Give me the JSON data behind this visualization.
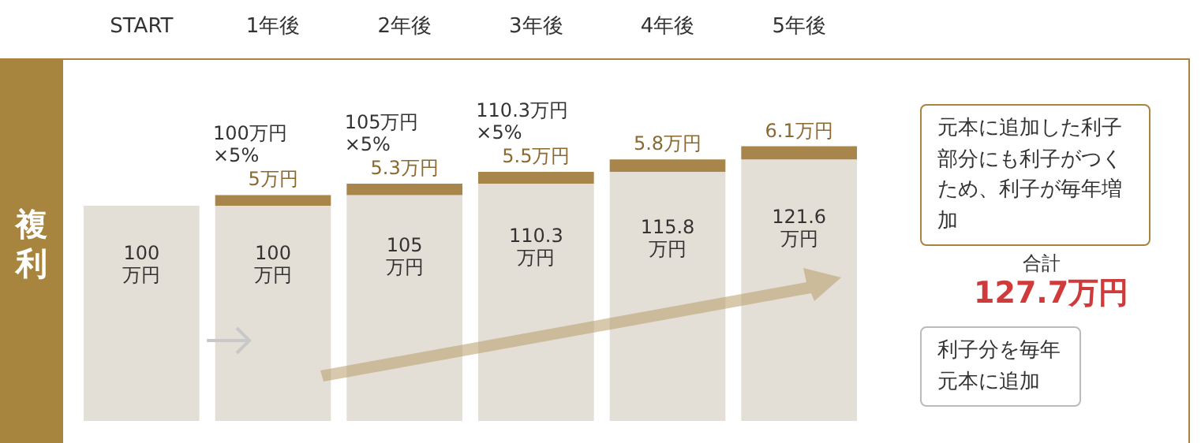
{
  "chart_data": {
    "type": "bar",
    "stacked": true,
    "ylabel": "複利",
    "categories": [
      "START",
      "1年後",
      "2年後",
      "3年後",
      "4年後",
      "5年後"
    ],
    "series": [
      {
        "color": "#e4dfd6",
        "values": [
          100,
          100,
          105,
          110.3,
          115.8,
          121.6
        ],
        "value_labels": [
          "100\n万円",
          "100\n万円",
          "105\n万円",
          "110.3\n万円",
          "115.8\n万円",
          "121.6\n万円"
        ]
      },
      {
        "color": "#a8854a",
        "values": [
          null,
          5,
          5.3,
          5.5,
          5.8,
          6.1
        ],
        "value_labels": [
          null,
          "5万円",
          "5.3万円",
          "5.5万円",
          "5.8万円",
          "6.1万円"
        ]
      }
    ],
    "annotations": [
      {
        "text": "100万円\n×5%",
        "x": "1年後",
        "y": 105
      },
      {
        "text": "105万円\n×5%",
        "x": "2年後",
        "y": 110.3
      },
      {
        "text": "110.3万円\n×5%",
        "x": "3年後",
        "y": 115.8
      },
      "元本に追加した利子部分にも利子がつくため、利子が毎年増加",
      "合計",
      "127.7万円",
      "利子分を毎年元本に追加"
    ]
  }
}
